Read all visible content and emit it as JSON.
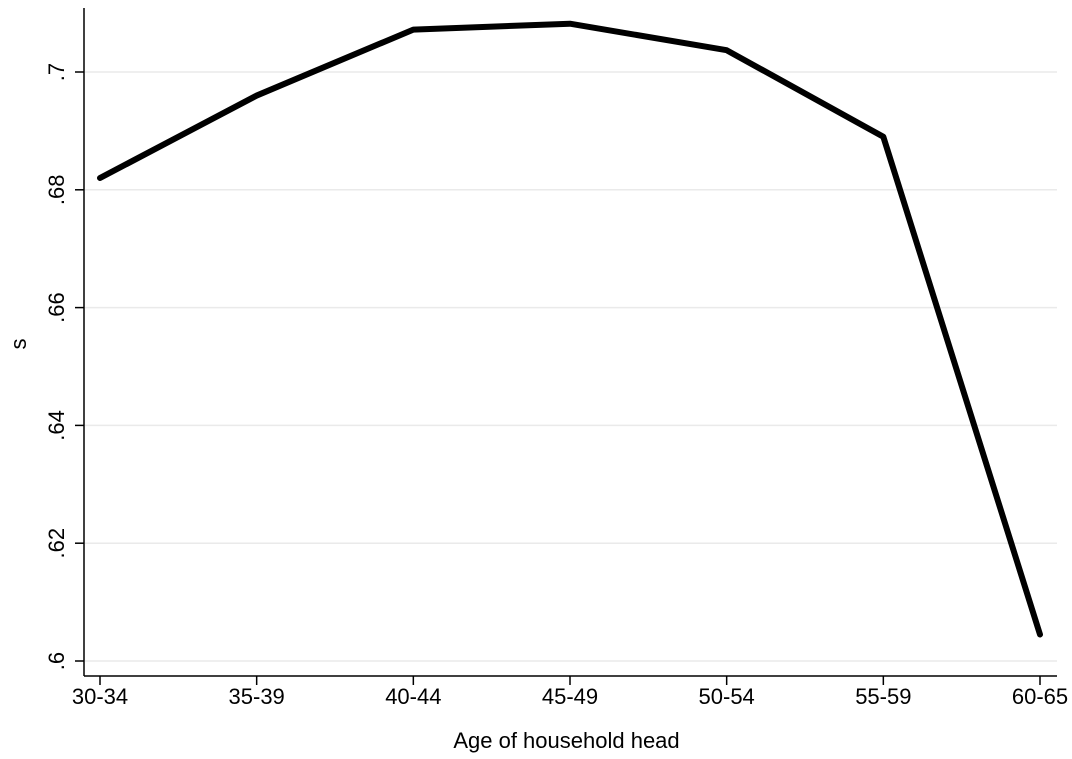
{
  "chart_data": {
    "type": "line",
    "title": "",
    "xlabel": "Age of household head",
    "ylabel": "s",
    "categories": [
      "30-34",
      "35-39",
      "40-44",
      "45-49",
      "50-54",
      "55-59",
      "60-65"
    ],
    "series": [
      {
        "values": [
          0.682,
          0.696,
          0.7072,
          0.7082,
          0.7037,
          0.689,
          0.6045
        ]
      }
    ],
    "yticks": [
      0.6,
      0.62,
      0.64,
      0.66,
      0.68,
      0.7
    ],
    "ytick_labels": [
      ".6",
      ".62",
      ".64",
      ".66",
      ".68",
      ".7"
    ],
    "ylim": [
      0.6,
      0.7
    ],
    "grid": true,
    "colors": {
      "line": "#000000",
      "grid": "#eaeaea",
      "axis": "#000000"
    }
  }
}
